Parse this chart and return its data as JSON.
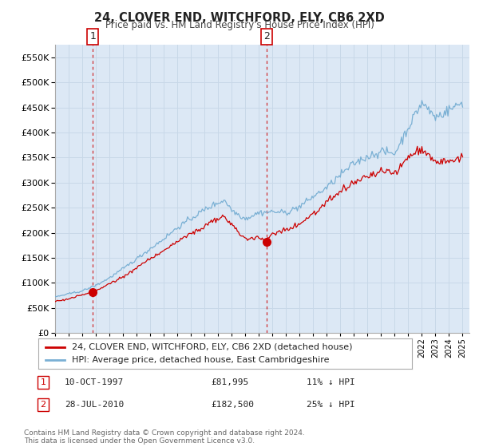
{
  "title": "24, CLOVER END, WITCHFORD, ELY, CB6 2XD",
  "subtitle": "Price paid vs. HM Land Registry's House Price Index (HPI)",
  "ylim": [
    0,
    575000
  ],
  "yticks": [
    0,
    50000,
    100000,
    150000,
    200000,
    250000,
    300000,
    350000,
    400000,
    450000,
    500000,
    550000
  ],
  "xlim_start": 1995.0,
  "xlim_end": 2025.5,
  "sale1_x": 1997.78,
  "sale1_y": 81995,
  "sale1_label": "1",
  "sale1_date": "10-OCT-1997",
  "sale1_price": "£81,995",
  "sale1_hpi": "11% ↓ HPI",
  "sale2_x": 2010.57,
  "sale2_y": 182500,
  "sale2_label": "2",
  "sale2_date": "28-JUL-2010",
  "sale2_price": "£182,500",
  "sale2_hpi": "25% ↓ HPI",
  "line_color_sales": "#cc0000",
  "line_color_hpi": "#7ab0d4",
  "marker_color": "#cc0000",
  "dashed_line_color": "#cc0000",
  "plot_bg_color": "#dce8f5",
  "legend_label_sales": "24, CLOVER END, WITCHFORD, ELY, CB6 2XD (detached house)",
  "legend_label_hpi": "HPI: Average price, detached house, East Cambridgeshire",
  "footer": "Contains HM Land Registry data © Crown copyright and database right 2024.\nThis data is licensed under the Open Government Licence v3.0.",
  "background_color": "#ffffff",
  "grid_color": "#c8d8e8"
}
